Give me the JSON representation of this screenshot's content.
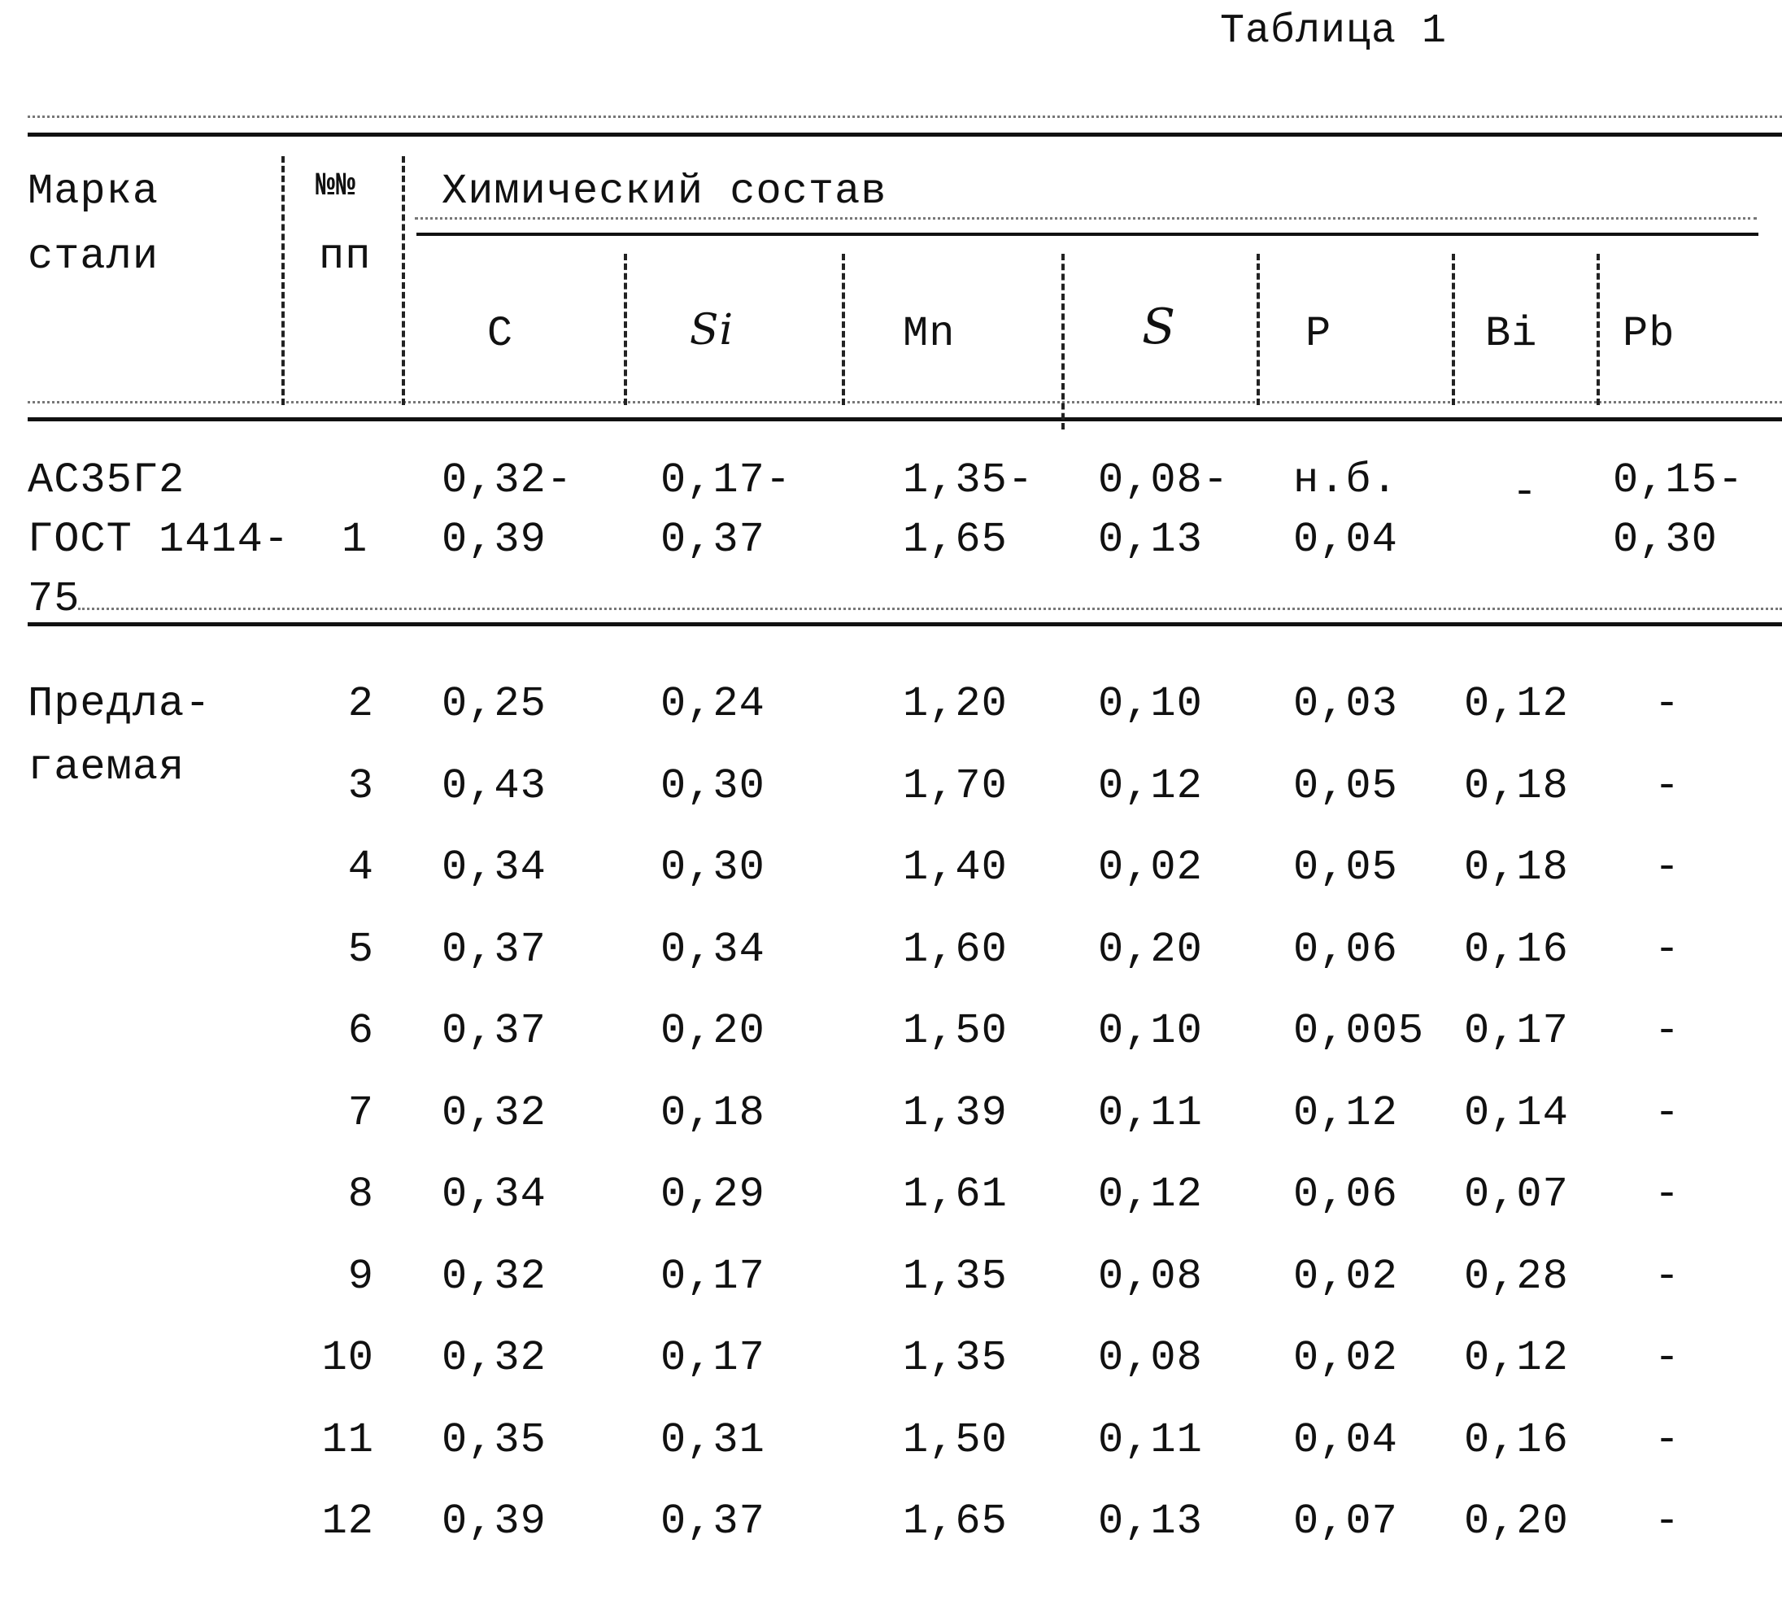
{
  "table_label": "Таблица 1",
  "header": {
    "grade_line1": "Марка",
    "grade_line2": "стали",
    "num_line1": "№№",
    "num_line2": "пп",
    "composition": "Химический состав",
    "elements": [
      "C",
      "Si",
      "Mn",
      "S",
      "P",
      "Bi",
      "Pb"
    ]
  },
  "reference_row": {
    "grade": [
      "АС35Г2",
      "ГОСТ 1414-",
      "75"
    ],
    "num": "1",
    "values": [
      [
        "0,32-",
        "0,39"
      ],
      [
        "0,17-",
        "0,37"
      ],
      [
        "1,35-",
        "1,65"
      ],
      [
        "0,08-",
        "0,13"
      ],
      [
        "н.б.",
        "0,04"
      ],
      [
        "-",
        ""
      ],
      [
        "0,15-",
        "0,30"
      ]
    ]
  },
  "proposed": {
    "grade": [
      "Предла-",
      "гаемая"
    ],
    "rows": [
      {
        "num": "2",
        "values": [
          "0,25",
          "0,24",
          "1,20",
          "0,10",
          "0,03",
          "0,12",
          "-"
        ]
      },
      {
        "num": "3",
        "values": [
          "0,43",
          "0,30",
          "1,70",
          "0,12",
          "0,05",
          "0,18",
          "-"
        ]
      },
      {
        "num": "4",
        "values": [
          "0,34",
          "0,30",
          "1,40",
          "0,02",
          "0,05",
          "0,18",
          "-"
        ]
      },
      {
        "num": "5",
        "values": [
          "0,37",
          "0,34",
          "1,60",
          "0,20",
          "0,06",
          "0,16",
          "-"
        ]
      },
      {
        "num": "6",
        "values": [
          "0,37",
          "0,20",
          "1,50",
          "0,10",
          "0,005",
          "0,17",
          "-"
        ]
      },
      {
        "num": "7",
        "values": [
          "0,32",
          "0,18",
          "1,39",
          "0,11",
          "0,12",
          "0,14",
          "-"
        ]
      },
      {
        "num": "8",
        "values": [
          "0,34",
          "0,29",
          "1,61",
          "0,12",
          "0,06",
          "0,07",
          "-"
        ]
      },
      {
        "num": "9",
        "values": [
          "0,32",
          "0,17",
          "1,35",
          "0,08",
          "0,02",
          "0,28",
          "-"
        ]
      },
      {
        "num": "10",
        "values": [
          "0,32",
          "0,17",
          "1,35",
          "0,08",
          "0,02",
          "0,12",
          "-"
        ]
      },
      {
        "num": "11",
        "values": [
          "0,35",
          "0,31",
          "1,50",
          "0,11",
          "0,04",
          "0,16",
          "-"
        ]
      },
      {
        "num": "12",
        "values": [
          "0,39",
          "0,37",
          "1,65",
          "0,13",
          "0,07",
          "0,20",
          "-"
        ]
      }
    ]
  }
}
